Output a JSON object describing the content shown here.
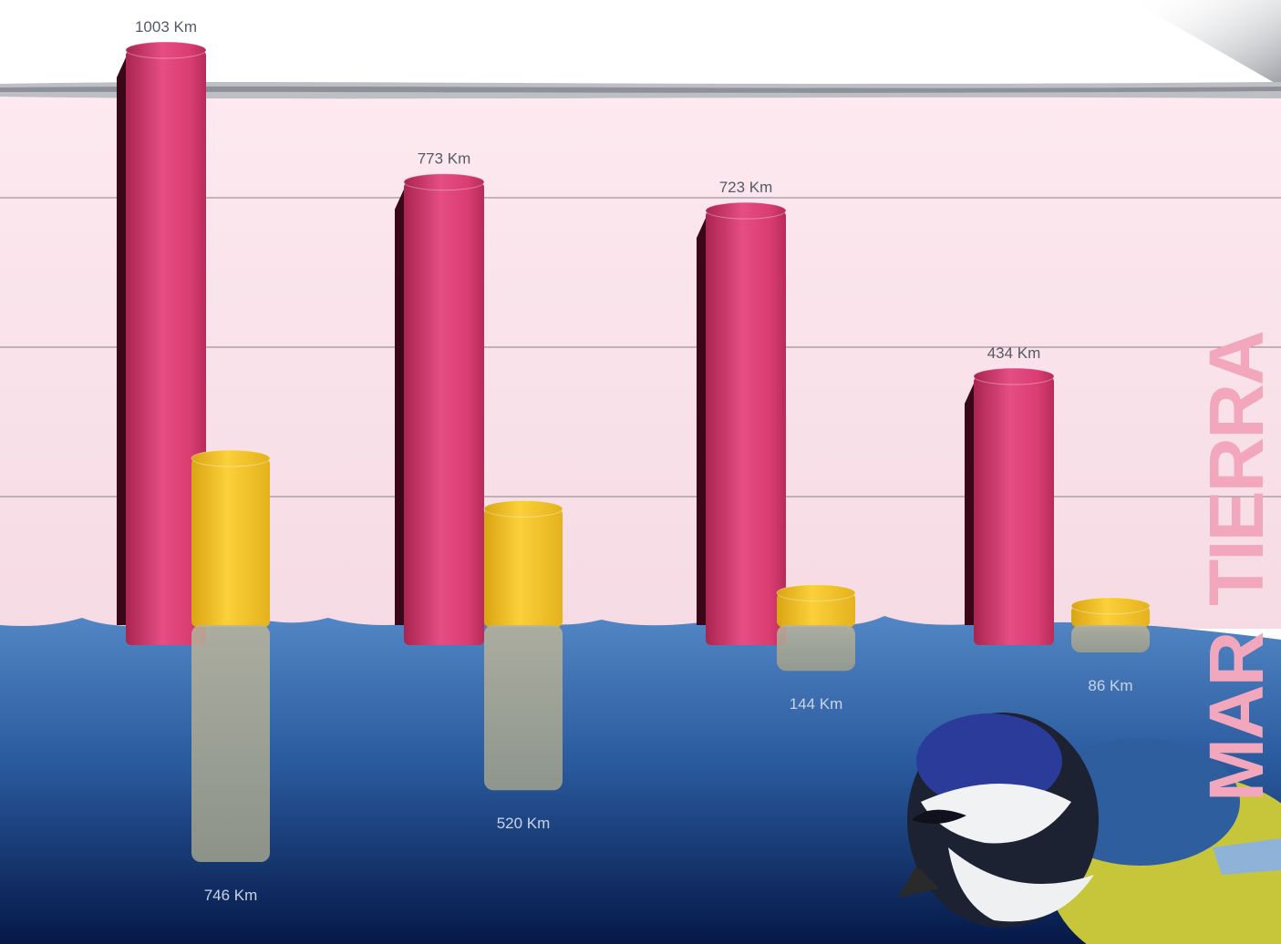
{
  "chart_data": {
    "type": "bar",
    "title": "",
    "xlabel": "",
    "ylabel": "",
    "axis_labels": [
      "MAR",
      "TIERRA"
    ],
    "categories": [
      "",
      "",
      "",
      ""
    ],
    "series": [
      {
        "color": "#e0457a",
        "values": [
          1003,
          773,
          723,
          434
        ]
      },
      {
        "color": "#f7c82e",
        "values": [
          746,
          520,
          144,
          86
        ]
      }
    ],
    "value_labels": {
      "pink": [
        "1003 Km",
        "773 Km",
        "723 Km",
        "434 Km"
      ],
      "yellow": [
        "746 Km",
        "520 Km",
        "144 Km",
        "86 Km"
      ]
    },
    "grid": true,
    "legend": "none"
  },
  "colors": {
    "sky": "#fbe6ee",
    "water_top": "#4a7fbe",
    "water_bottom": "#061a4d",
    "pink_bar": "#e0457a",
    "yellow_bar": "#f7c82e"
  }
}
